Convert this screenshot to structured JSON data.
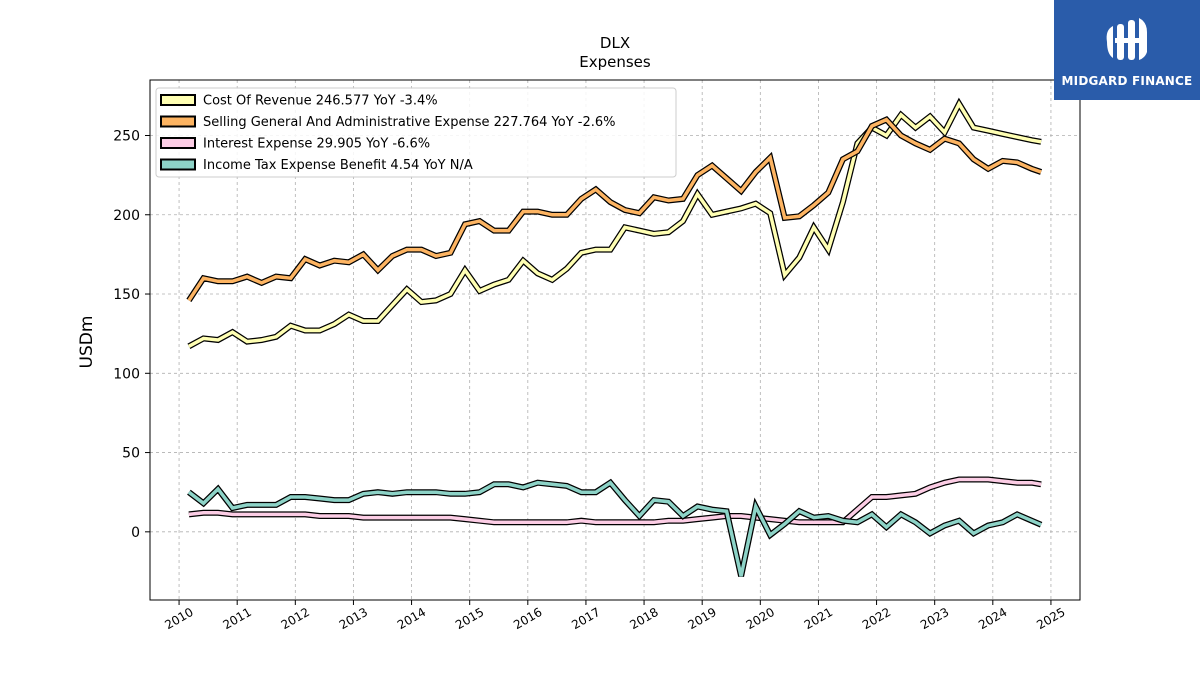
{
  "chart_data": {
    "type": "line",
    "title": "DLX",
    "subtitle": "Expenses",
    "xlabel": "",
    "ylabel": "USDm",
    "xlim": [
      2009.5,
      2025.5
    ],
    "ylim": [
      -43,
      285
    ],
    "x_ticks": [
      2010,
      2011,
      2012,
      2013,
      2014,
      2015,
      2016,
      2017,
      2018,
      2019,
      2020,
      2021,
      2022,
      2023,
      2024,
      2025
    ],
    "y_ticks": [
      0,
      50,
      100,
      150,
      200,
      250
    ],
    "grid": true,
    "legend_position": "top-left",
    "x": [
      2010.17,
      2010.42,
      2010.67,
      2010.92,
      2011.17,
      2011.42,
      2011.67,
      2011.92,
      2012.17,
      2012.42,
      2012.67,
      2012.92,
      2013.17,
      2013.42,
      2013.67,
      2013.92,
      2014.17,
      2014.42,
      2014.67,
      2014.92,
      2015.17,
      2015.42,
      2015.67,
      2015.92,
      2016.17,
      2016.42,
      2016.67,
      2016.92,
      2017.17,
      2017.42,
      2017.67,
      2017.92,
      2018.17,
      2018.42,
      2018.67,
      2018.92,
      2019.17,
      2019.42,
      2019.67,
      2019.92,
      2020.17,
      2020.42,
      2020.67,
      2020.92,
      2021.17,
      2021.42,
      2021.67,
      2021.92,
      2022.17,
      2022.42,
      2022.67,
      2022.92,
      2023.17,
      2023.42,
      2023.67,
      2023.92,
      2024.17,
      2024.42,
      2024.67,
      2024.83
    ],
    "series": [
      {
        "name": "Cost Of Revenue",
        "legend": "Cost Of Revenue  246.577 YoY -3.4%",
        "color": "#ffffb3",
        "values": [
          117,
          122,
          121,
          126,
          120,
          121,
          123,
          130,
          127,
          127,
          131,
          137,
          133,
          133,
          143,
          153,
          145,
          146,
          150,
          165,
          152,
          156,
          159,
          171,
          163,
          159,
          166,
          176,
          178,
          178,
          192,
          190,
          188,
          189,
          196,
          213,
          200,
          202,
          204,
          207,
          201,
          162,
          173,
          192,
          178,
          208,
          245,
          255,
          250,
          263,
          255,
          262,
          252,
          270,
          255,
          253,
          251,
          249,
          247,
          246
        ]
      },
      {
        "name": "Selling General And Administrative Expense",
        "legend": "Selling General And Administrative Expense  227.764 YoY -2.6%",
        "color": "#fdb462",
        "values": [
          146,
          160,
          158,
          158,
          161,
          157,
          161,
          160,
          172,
          168,
          171,
          170,
          175,
          165,
          174,
          178,
          178,
          174,
          176,
          194,
          196,
          190,
          190,
          202,
          202,
          200,
          200,
          210,
          216,
          208,
          203,
          201,
          211,
          209,
          210,
          225,
          231,
          223,
          215,
          227,
          236,
          198,
          199,
          206,
          214,
          235,
          240,
          256,
          260,
          250,
          245,
          241,
          248,
          245,
          235,
          229,
          234,
          233,
          229,
          227
        ]
      },
      {
        "name": "Interest Expense",
        "legend": "Interest Expense  29.905 YoY -6.6%",
        "color": "#fccde5",
        "values": [
          11,
          12,
          12,
          11,
          11,
          11,
          11,
          11,
          11,
          10,
          10,
          10,
          9,
          9,
          9,
          9,
          9,
          9,
          9,
          8,
          7,
          6,
          6,
          6,
          6,
          6,
          6,
          7,
          6,
          6,
          6,
          6,
          6,
          7,
          7,
          8,
          9,
          10,
          10,
          9,
          8,
          7,
          6,
          6,
          6,
          6,
          14,
          22,
          22,
          23,
          24,
          28,
          31,
          33,
          33,
          33,
          32,
          31,
          31,
          30
        ]
      },
      {
        "name": "Income Tax Expense Benefit",
        "legend": "Income Tax Expense Benefit  4.54 YoY N/A",
        "color": "#8dd3c7",
        "values": [
          25,
          18,
          27,
          15,
          17,
          17,
          17,
          22,
          22,
          21,
          20,
          20,
          24,
          25,
          24,
          25,
          25,
          25,
          24,
          24,
          25,
          30,
          30,
          28,
          31,
          30,
          29,
          25,
          25,
          31,
          20,
          10,
          20,
          19,
          10,
          16,
          14,
          13,
          -28,
          16,
          -2,
          5,
          13,
          9,
          10,
          7,
          6,
          11,
          3,
          11,
          6,
          -1,
          4,
          7,
          -1,
          4,
          6,
          11,
          7,
          4.5
        ]
      }
    ]
  },
  "logo": {
    "text": "MIDGARD FINANCE",
    "color": "#2a5caa"
  }
}
